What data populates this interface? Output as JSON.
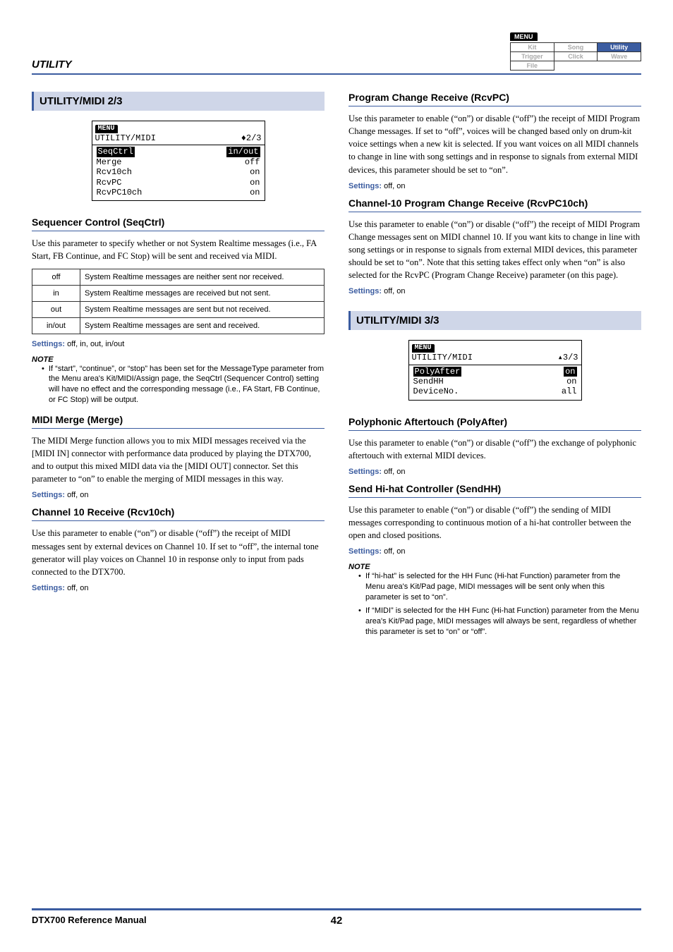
{
  "header_label": "UTILITY",
  "nav": {
    "label": "MENU",
    "rows": [
      [
        "Kit",
        "Song",
        "Utility"
      ],
      [
        "Trigger",
        "Click",
        "Wave"
      ],
      [
        "File",
        "",
        ""
      ]
    ],
    "active": "Utility"
  },
  "left": {
    "band": "UTILITY/MIDI  2/3",
    "lcd": {
      "menu": "MENU",
      "title_left": "UTILITY/MIDI",
      "title_right": "♦2/3",
      "rows": [
        {
          "l": "SeqCtrl",
          "r": "in/out",
          "hl": true
        },
        {
          "l": "Merge",
          "r": "off"
        },
        {
          "l": "Rcv10ch",
          "r": "on"
        },
        {
          "l": "RcvPC",
          "r": "on"
        },
        {
          "l": "RcvPC10ch",
          "r": "on"
        }
      ]
    },
    "s1": {
      "title": "Sequencer Control (SeqCtrl)",
      "body": "Use this parameter to specify whether or not System Realtime messages (i.e., FA Start, FB Continue, and FC Stop) will be sent and received via MIDI.",
      "table": [
        [
          "off",
          "System Realtime messages are neither sent nor received."
        ],
        [
          "in",
          "System Realtime messages are received but not sent."
        ],
        [
          "out",
          "System Realtime messages are sent but not received."
        ],
        [
          "in/out",
          "System Realtime messages are sent and received."
        ]
      ],
      "settings": "off, in, out, in/out",
      "note": "If “start”, “continue”, or “stop” has been set for the MessageType parameter from the Menu area's Kit/MIDI/Assign page, the SeqCtrl (Sequencer Control) setting will have no effect and the corresponding message (i.e., FA Start, FB Continue, or FC Stop) will be output."
    },
    "s2": {
      "title": "MIDI Merge (Merge)",
      "body": "The MIDI Merge function allows you to mix MIDI messages received via the [MIDI IN] connector with performance data produced by playing the DTX700, and to output this mixed MIDI data via the [MIDI OUT] connector. Set this parameter to “on” to enable the merging of MIDI messages in this way.",
      "settings": "off, on"
    },
    "s3": {
      "title": "Channel 10 Receive (Rcv10ch)",
      "body": "Use this parameter to enable (“on”) or disable (“off”) the receipt of MIDI messages sent by external devices on Channel 10. If set to “off”, the internal tone generator will play voices on Channel 10 in response only to input from pads connected to the DTX700.",
      "settings": "off, on"
    }
  },
  "right": {
    "s1": {
      "title": "Program Change Receive (RcvPC)",
      "body": "Use this parameter to enable (“on”) or disable (“off”) the receipt of MIDI Program Change messages. If set to “off”, voices will be changed based only on drum-kit voice settings when a new kit is selected. If you want voices on all MIDI channels to change in line with song settings and in response to signals from external MIDI devices, this parameter should be set to “on”.",
      "settings": "off, on"
    },
    "s2": {
      "title": "Channel-10 Program Change Receive (RcvPC10ch)",
      "body": "Use this parameter to enable (“on”) or disable (“off”) the receipt of MIDI Program Change messages sent on MIDI channel 10. If you want kits to change in line with song settings or in response to signals from external MIDI devices, this parameter should be set to “on”. Note that this setting takes effect only when “on” is also selected for the RcvPC (Program Change Receive) parameter (on this page).",
      "settings": "off, on"
    },
    "band": "UTILITY/MIDI  3/3",
    "lcd": {
      "menu": "MENU",
      "title_left": "UTILITY/MIDI",
      "title_right": "▴3/3",
      "rows": [
        {
          "l": "PolyAfter",
          "r": "on",
          "hl": true
        },
        {
          "l": "SendHH",
          "r": "on"
        },
        {
          "l": "DeviceNo.",
          "r": "all"
        }
      ]
    },
    "s3": {
      "title": "Polyphonic Aftertouch (PolyAfter)",
      "body": "Use this parameter to enable (“on”) or disable (“off”) the exchange of polyphonic aftertouch with external MIDI devices.",
      "settings": "off, on"
    },
    "s4": {
      "title": "Send Hi-hat Controller (SendHH)",
      "body": "Use this parameter to enable (“on”) or disable (“off”) the sending of MIDI messages corresponding to continuous motion of a hi-hat controller between the open and closed positions.",
      "settings": "off, on",
      "notes": [
        "If “hi-hat” is selected for the HH Func (Hi-hat Function) parameter from the Menu area's Kit/Pad page, MIDI messages will be sent only when this parameter is set to “on”.",
        "If “MIDI” is selected for the HH Func (Hi-hat Function) parameter from the Menu area's Kit/Pad page, MIDI messages will always be sent, regardless of whether this parameter is set to “on” or “off”."
      ]
    }
  },
  "footer": {
    "title": "DTX700  Reference Manual",
    "page": "42"
  },
  "labels": {
    "settings": "Settings:",
    "note": "NOTE"
  }
}
